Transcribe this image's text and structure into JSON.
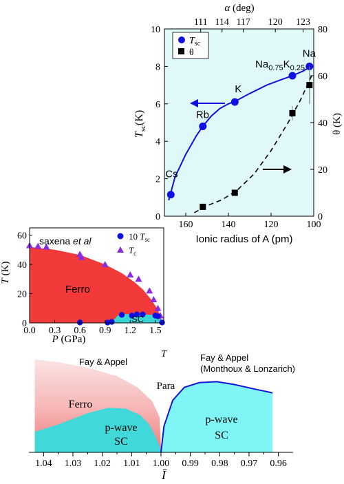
{
  "chart_data": [
    {
      "type": "line",
      "panel": "top",
      "xlabel": "Ionic radius of A (pm)",
      "x_reversed": true,
      "xlim": [
        170,
        100
      ],
      "xticks": [
        "160",
        "140",
        "120",
        "100"
      ],
      "xtick_values": [
        160,
        140,
        120,
        100
      ],
      "x2label": "α (deg)",
      "x2label_symbol": "α",
      "x2label_unit": "(deg)",
      "x2ticks": [
        "111",
        "114",
        "117",
        "120",
        "123"
      ],
      "x2tick_positions_ionic": [
        153,
        143,
        133,
        118,
        105
      ],
      "ylabel_left": "T_sc (K)",
      "ylabel_left_main": "T",
      "ylabel_left_sub": "sc",
      "ylabel_left_unit": "(K)",
      "ylim_left": [
        0,
        10
      ],
      "yticks_left": [
        "0",
        "2",
        "4",
        "6",
        "8",
        "10"
      ],
      "ylabel_right": "θ (K)",
      "ylim_right": [
        0,
        80
      ],
      "yticks_right": [
        "0",
        "20",
        "40",
        "60",
        "80"
      ],
      "background_fill": "#e0f8f8",
      "legend_placement": "top-left",
      "series": [
        {
          "name": "T_sc",
          "name_main": "T",
          "name_sub": "sc",
          "axis": "left",
          "marker": "circle",
          "color": "#1010e0",
          "x": [
            167,
            152,
            137,
            110,
            102
          ],
          "y": [
            1.15,
            4.8,
            6.1,
            7.5,
            8.0
          ],
          "fit_x": [
            168,
            165,
            160,
            155,
            152,
            148,
            144,
            140,
            137,
            130,
            122,
            115,
            110,
            105,
            102
          ],
          "fit_y": [
            0.85,
            2.1,
            3.3,
            4.3,
            4.8,
            5.35,
            5.75,
            6.0,
            6.12,
            6.55,
            7.0,
            7.3,
            7.5,
            7.75,
            7.95
          ]
        },
        {
          "name": "θ",
          "axis": "right",
          "marker": "square",
          "color": "#000000",
          "x": [
            152,
            137,
            110,
            102
          ],
          "y": [
            4.0,
            10.0,
            44.0,
            56.0
          ],
          "errors": [
            0,
            0,
            3,
            8
          ],
          "fit_x": [
            156,
            150,
            143,
            136,
            128,
            120,
            112,
            106,
            101
          ],
          "fit_y": [
            1.5,
            4.5,
            7.0,
            11.0,
            18.0,
            28.0,
            40.0,
            50.0,
            60.0
          ]
        }
      ],
      "point_labels": [
        {
          "text": "Cs",
          "x": 167,
          "y": 1.15
        },
        {
          "text": "Rb",
          "x": 152,
          "y": 4.8
        },
        {
          "text": "K",
          "x": 137,
          "y": 6.1
        },
        {
          "text": "Na0.75K0.25",
          "parts": [
            "Na",
            "0.75",
            "K",
            "0.25"
          ],
          "x": 110,
          "y": 7.5
        },
        {
          "text": "Na",
          "x": 102,
          "y": 8.0
        }
      ]
    },
    {
      "type": "scatter",
      "panel": "middle",
      "annotation": "saxena et al",
      "annotation_main": "saxena ",
      "annotation_italic": "et al",
      "xlabel": "P (GPa)",
      "xlabel_main": "P",
      "xlabel_unit": " (GPa)",
      "xlim": [
        0,
        1.6
      ],
      "xticks": [
        "0.0",
        "0.3",
        "0.6",
        "0.9",
        "1.2",
        "1.5"
      ],
      "xtick_values": [
        0.0,
        0.3,
        0.6,
        0.9,
        1.2,
        1.5
      ],
      "ylabel": "T (K)",
      "ylabel_main": "T",
      "ylabel_unit": " (K)",
      "ylim": [
        0,
        65
      ],
      "yticks": [
        "0",
        "20",
        "40",
        "60"
      ],
      "ytick_values": [
        0,
        20,
        40,
        60
      ],
      "legend_placement": "top-right",
      "regions": [
        {
          "label": "Ferro",
          "color": "#f23a3a"
        },
        {
          "label": "SC",
          "color": "#3ad6d6"
        }
      ],
      "series": [
        {
          "name": "10 T_sc",
          "name_prefix": "10 ",
          "name_main": "T",
          "name_sub": "sc",
          "marker": "circle",
          "color": "#1010e0",
          "x": [
            0.6,
            0.93,
            0.98,
            1.1,
            1.22,
            1.28,
            1.35,
            1.5,
            1.53,
            1.58
          ],
          "y": [
            0.3,
            0.2,
            0.7,
            5.5,
            5.0,
            5.8,
            5.8,
            5.0,
            4.5,
            0.3
          ]
        },
        {
          "name": "T_c",
          "name_main": "T",
          "name_sub": "c",
          "marker": "triangle",
          "color": "#8a2be2",
          "x": [
            0.0,
            0.1,
            0.2,
            0.6,
            0.62,
            0.9,
            1.2,
            1.3,
            1.43,
            1.48,
            1.53,
            1.56
          ],
          "y": [
            53,
            52.5,
            52,
            47,
            45,
            40,
            33,
            30,
            22,
            16,
            10,
            5
          ]
        }
      ],
      "ferro_boundary_x": [
        0.0,
        0.3,
        0.6,
        0.9,
        1.1,
        1.25,
        1.35,
        1.45,
        1.52,
        1.56,
        1.58
      ],
      "ferro_boundary_y": [
        52,
        50,
        46.5,
        40,
        34,
        28,
        23,
        16,
        10,
        5,
        0
      ],
      "sc_region_x": [
        0.97,
        1.05,
        1.15,
        1.3,
        1.45,
        1.52,
        1.56,
        1.58
      ],
      "sc_region_y": [
        0,
        5,
        6,
        6,
        5.5,
        4.8,
        2.5,
        0
      ]
    },
    {
      "type": "area",
      "panel": "bottom",
      "xlabel": "Ī",
      "x_reversed": true,
      "xlim": [
        1.045,
        0.955
      ],
      "xticks": [
        "1.04",
        "1.03",
        "1.02",
        "1.01",
        "1.00",
        "0.99",
        "0.98",
        "0.97",
        "0.96"
      ],
      "xtick_values": [
        1.04,
        1.03,
        1.02,
        1.01,
        1.0,
        0.99,
        0.98,
        0.97,
        0.96
      ],
      "ylabel": "T",
      "annotations": [
        "Fay & Appel",
        "Fay & Appel",
        "(Monthoux & Lonzarich)",
        "Para"
      ],
      "regions": [
        {
          "label": "Ferro",
          "color": "#f4a0a0"
        },
        {
          "label": "p-wave SC",
          "lines": [
            "p-wave",
            "SC"
          ],
          "color": "#40d8d8",
          "side": "left"
        },
        {
          "label": "p-wave SC",
          "lines": [
            "p-wave",
            "SC"
          ],
          "color": "#7ff5f5",
          "side": "right"
        }
      ],
      "ferro_boundary_x": [
        1.043,
        1.035,
        1.025,
        1.015,
        1.008,
        1.003,
        1.0005,
        1.0
      ],
      "ferro_boundary_y": [
        1.0,
        0.97,
        0.91,
        0.82,
        0.7,
        0.55,
        0.38,
        0.05
      ],
      "sc_left_x": [
        1.043,
        1.035,
        1.025,
        1.018,
        1.012,
        1.007,
        1.004,
        1.002,
        1.0005,
        1.0
      ],
      "sc_left_y": [
        0.22,
        0.3,
        0.42,
        0.48,
        0.47,
        0.4,
        0.3,
        0.18,
        0.07,
        0.0
      ],
      "sc_right_x": [
        1.0,
        0.999,
        0.996,
        0.992,
        0.987,
        0.981,
        0.975,
        0.968,
        0.962
      ],
      "sc_right_y": [
        0.0,
        0.28,
        0.56,
        0.7,
        0.75,
        0.76,
        0.73,
        0.68,
        0.64
      ]
    }
  ]
}
